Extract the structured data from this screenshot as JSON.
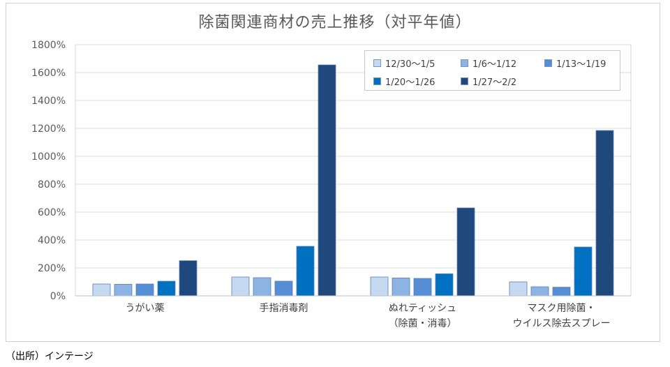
{
  "source_note": "（出所）インテージ",
  "chart_data": {
    "type": "bar",
    "title": "除菌関連商材の売上推移（対平年値）",
    "categories": [
      [
        "うがい薬"
      ],
      [
        "手指消毒剤"
      ],
      [
        "ぬれティッシュ",
        "（除菌・消毒）"
      ],
      [
        "マスク用除菌・",
        "ウイルス除去スプレー"
      ]
    ],
    "series": [
      {
        "name": "12/30～1/5",
        "color": "#c5d9f1",
        "values": [
          85,
          135,
          135,
          100
        ]
      },
      {
        "name": "1/6～1/12",
        "color": "#8db3e2",
        "values": [
          83,
          130,
          128,
          65
        ]
      },
      {
        "name": "1/13～1/19",
        "color": "#558ed5",
        "values": [
          85,
          105,
          125,
          62
        ]
      },
      {
        "name": "1/20～1/26",
        "color": "#0070c0",
        "values": [
          105,
          355,
          158,
          350
        ]
      },
      {
        "name": "1/27～2/2",
        "color": "#1f497d",
        "values": [
          252,
          1655,
          630,
          1185
        ]
      }
    ],
    "ylim": [
      0,
      1800
    ],
    "yticks": [
      0,
      200,
      400,
      600,
      800,
      1000,
      1200,
      1400,
      1600,
      1800
    ],
    "ytick_labels": [
      "0%",
      "200%",
      "400%",
      "600%",
      "800%",
      "1000%",
      "1200%",
      "1400%",
      "1600%",
      "1800%"
    ],
    "grid": true,
    "legend_position": "top-right"
  }
}
